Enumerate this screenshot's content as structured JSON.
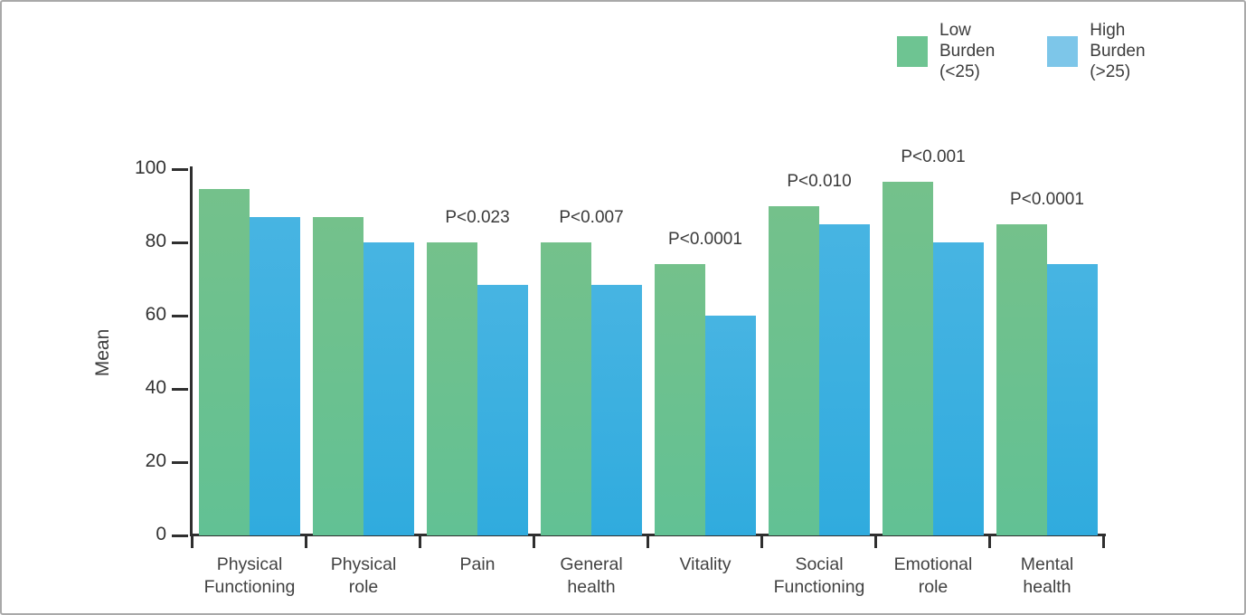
{
  "frame": {
    "border_color": "#a9a9a9",
    "background": "#ffffff"
  },
  "legend": {
    "items": [
      {
        "name": "low-burden",
        "label": "Low\nBurden\n(<25)",
        "color": "#6ec492"
      },
      {
        "name": "high-burden",
        "label": "High\nBurden\n(>25)",
        "color": "#7dc6e9"
      }
    ]
  },
  "chart_data": {
    "type": "bar",
    "title": "",
    "xlabel": "",
    "ylabel": "Mean",
    "ylim": [
      0,
      100
    ],
    "yticks": [
      0,
      20,
      40,
      60,
      80,
      100
    ],
    "grid": false,
    "legend_position": "top-right",
    "categories": [
      "Physical\nFunctioning",
      "Physical\nrole",
      "Pain",
      "General\nhealth",
      "Vitality",
      "Social\nFunctioning",
      "Emotional\nrole",
      "Mental\nhealth"
    ],
    "series": [
      {
        "name": "Low Burden (<25)",
        "color_top": "#74c18b",
        "color_bottom": "#62c194",
        "values": [
          94.5,
          87,
          80,
          80,
          74,
          90,
          96.5,
          85
        ]
      },
      {
        "name": "High Burden (>25)",
        "color_top": "#47b4e2",
        "color_bottom": "#30abde",
        "values": [
          87,
          80,
          68.5,
          68.5,
          60,
          85,
          80,
          74
        ]
      }
    ],
    "annotations": [
      {
        "category_index": 2,
        "text": "P<0.023"
      },
      {
        "category_index": 3,
        "text": "P<0.007"
      },
      {
        "category_index": 4,
        "text": "P<0.0001"
      },
      {
        "category_index": 5,
        "text": "P<0.010"
      },
      {
        "category_index": 6,
        "text": "P<0.001"
      },
      {
        "category_index": 7,
        "text": "P<0.0001"
      }
    ]
  }
}
